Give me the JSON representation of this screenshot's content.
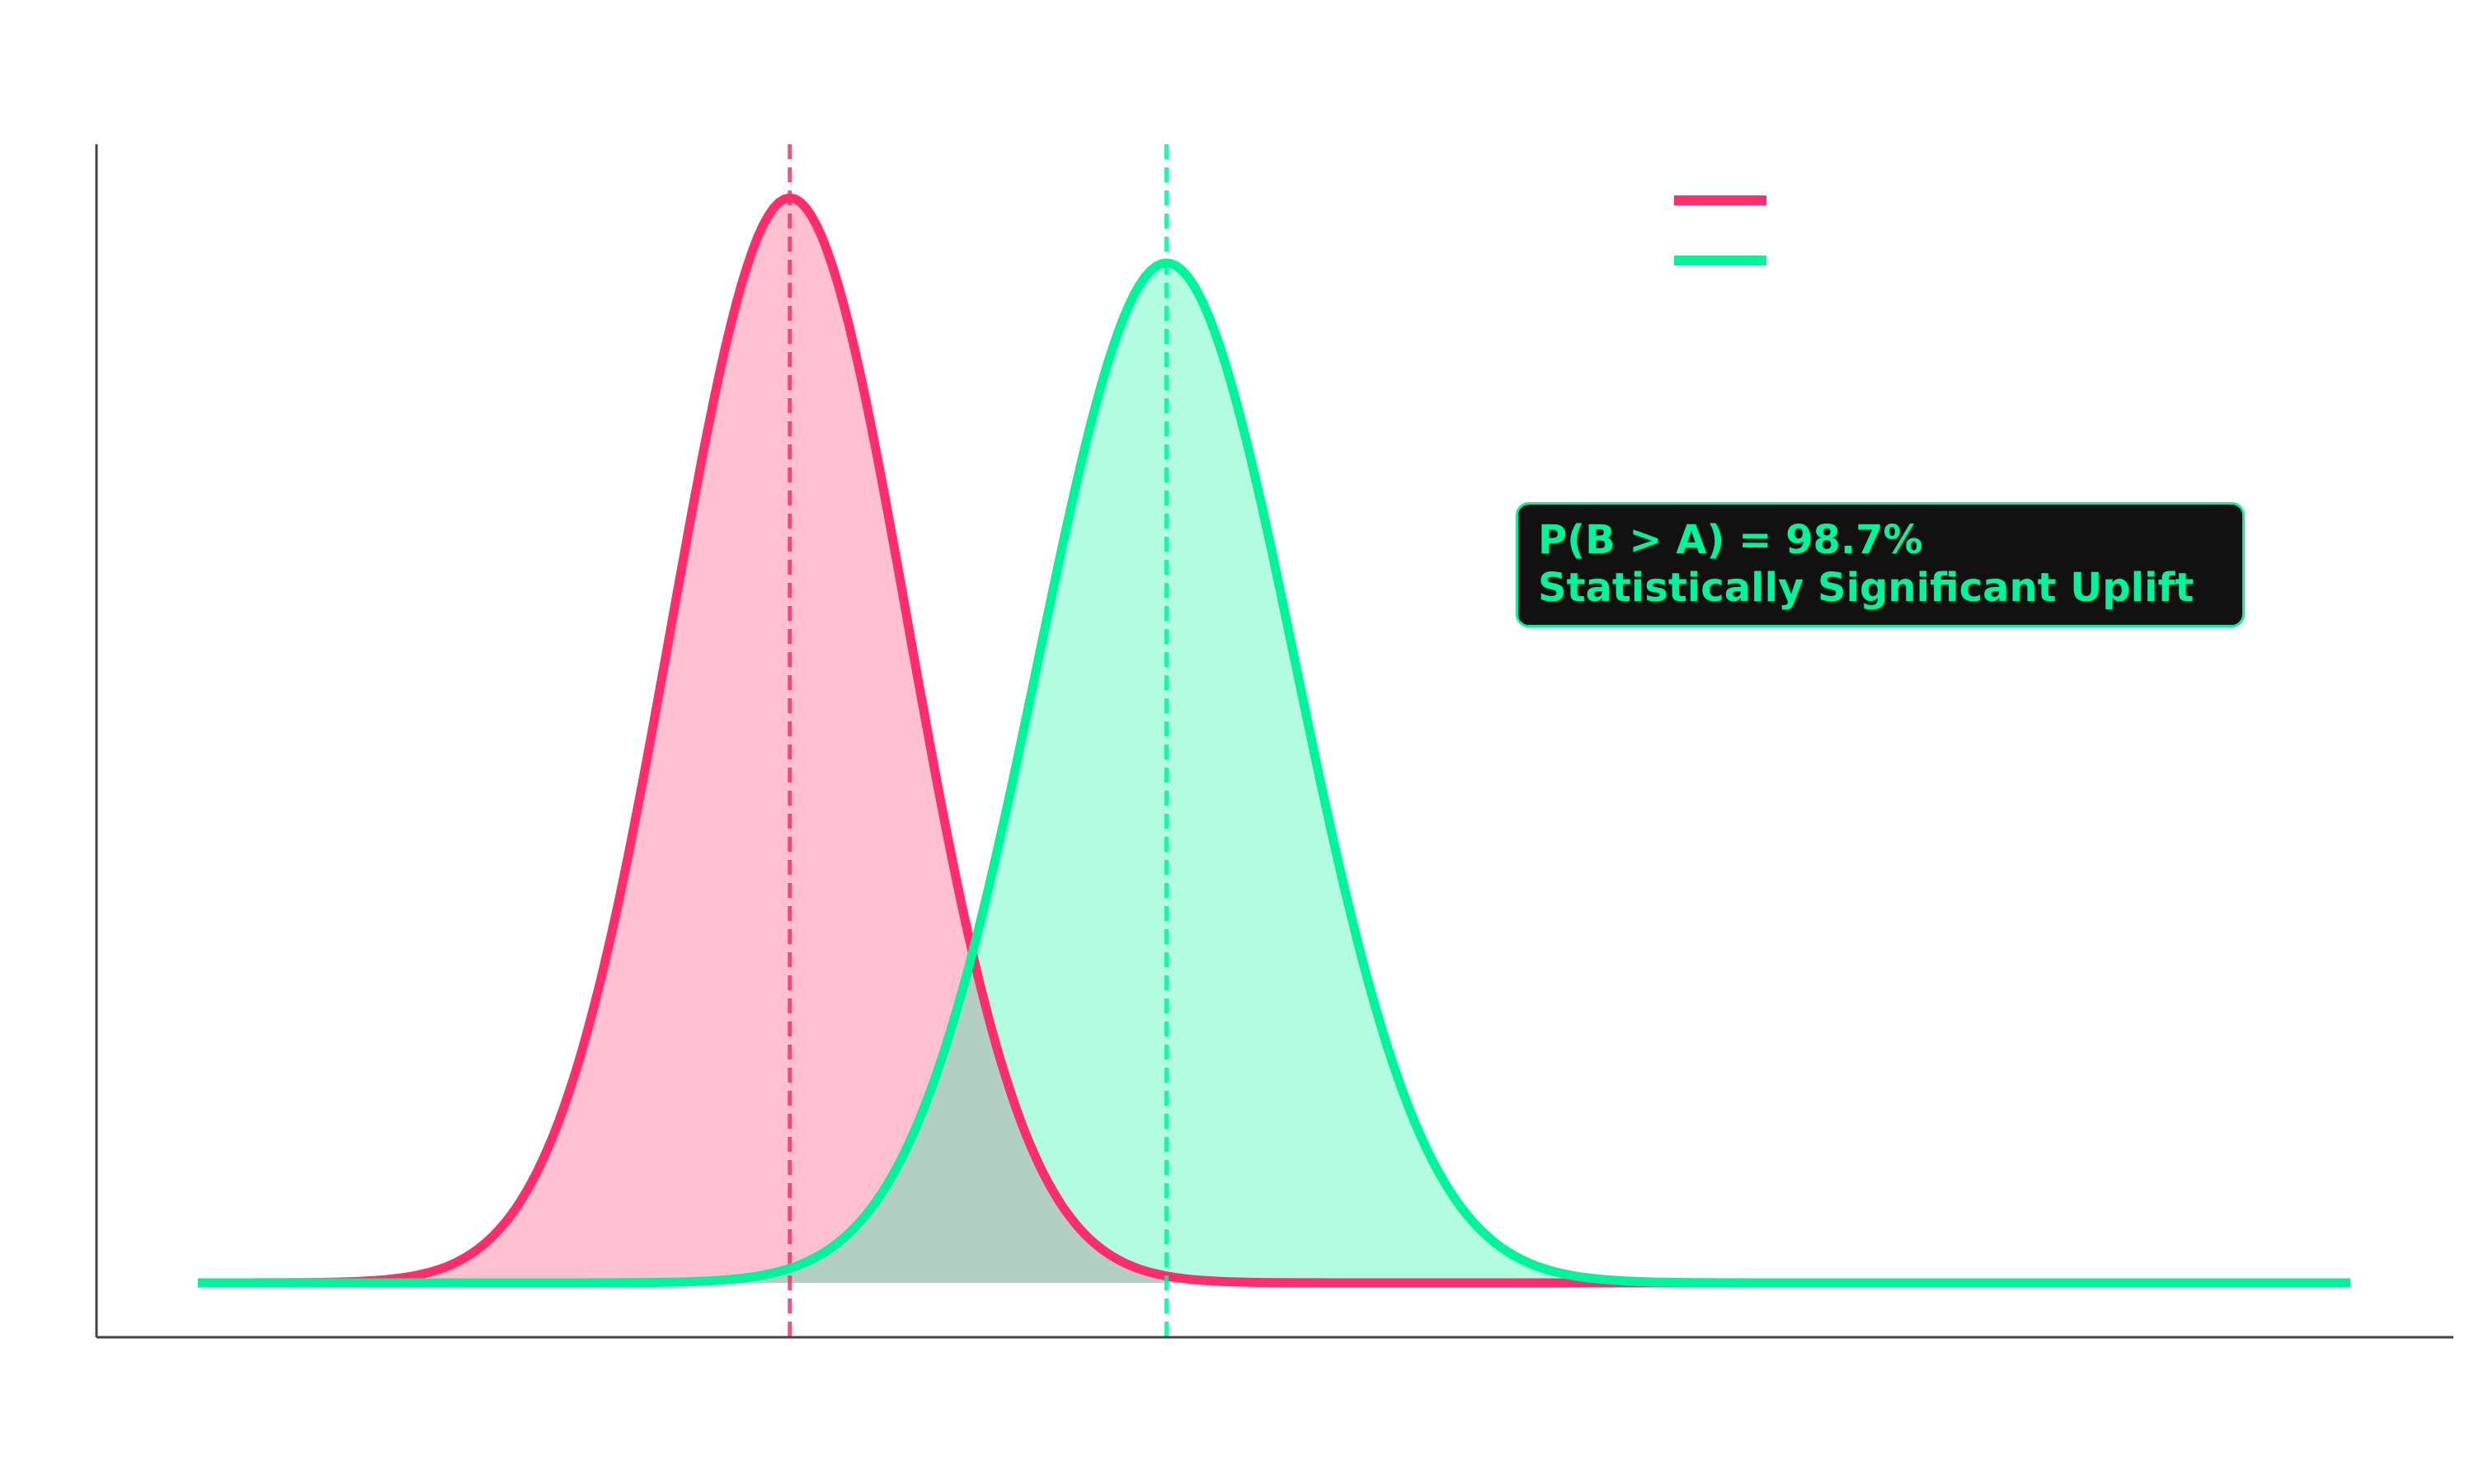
{
  "chart_data": {
    "type": "area",
    "title": "",
    "xlabel": "",
    "ylabel": "",
    "xlim": [
      0,
      100
    ],
    "ylim": [
      0,
      1.05
    ],
    "grid": false,
    "legend_position": "top-right",
    "series": [
      {
        "name": "",
        "distribution": "normal",
        "mean": 27.5,
        "std": 5.5,
        "peak_density": 1.0,
        "color": "#ff2d6b",
        "fill_color": "#ffbfd1",
        "mean_line": 27.5
      },
      {
        "name": "",
        "distribution": "normal",
        "mean": 45,
        "std": 6.0,
        "peak_density": 0.94,
        "color": "#00f59b",
        "fill_color": "#b3ffdf",
        "mean_line": 45
      }
    ],
    "annotation": {
      "line1": "P(B > A) = 98.7%",
      "line2": "Statistically Significant Uplift",
      "text_color": "#00f59b",
      "box_color": "#111111"
    }
  }
}
